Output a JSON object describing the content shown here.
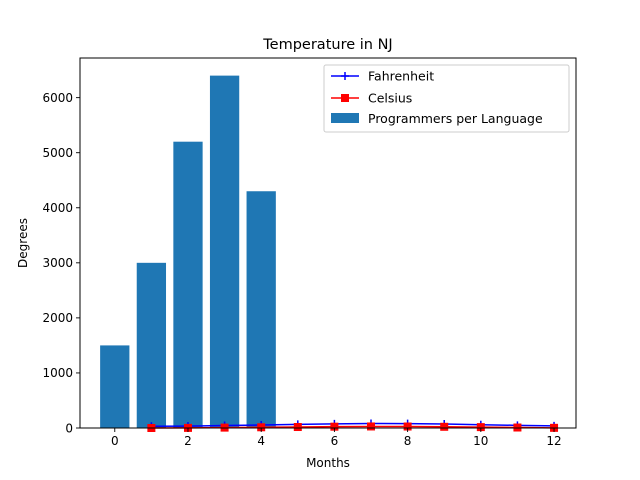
{
  "chart_data": {
    "type": "bar",
    "title": "Temperature in NJ",
    "xlabel": "Months",
    "ylabel": "Degrees",
    "xlim": [
      -0.95,
      12.6
    ],
    "ylim": [
      0,
      6720
    ],
    "xticks": [
      0,
      2,
      4,
      6,
      8,
      10,
      12
    ],
    "yticks": [
      0,
      1000,
      2000,
      3000,
      4000,
      5000,
      6000
    ],
    "grid": false,
    "legend_position": "top-right",
    "bars": {
      "name": "Programmers per Language",
      "color": "#1f77b4",
      "x": [
        0,
        1,
        2,
        3,
        4
      ],
      "values": [
        1500,
        3000,
        5200,
        6400,
        4300
      ]
    },
    "series": [
      {
        "name": "Fahrenheit",
        "type": "line",
        "marker": "plus",
        "color": "#0000ff",
        "x": [
          1,
          2,
          3,
          4,
          5,
          6,
          7,
          8,
          9,
          10,
          11,
          12
        ],
        "values": [
          32,
          35,
          45,
          55,
          65,
          75,
          82,
          80,
          72,
          60,
          48,
          38
        ]
      },
      {
        "name": "Celsius",
        "type": "line",
        "marker": "square",
        "color": "#ff0000",
        "x": [
          1,
          2,
          3,
          4,
          5,
          6,
          7,
          8,
          9,
          10,
          11,
          12
        ],
        "values": [
          0,
          2,
          7,
          13,
          18,
          24,
          28,
          27,
          22,
          16,
          9,
          3
        ]
      }
    ]
  }
}
